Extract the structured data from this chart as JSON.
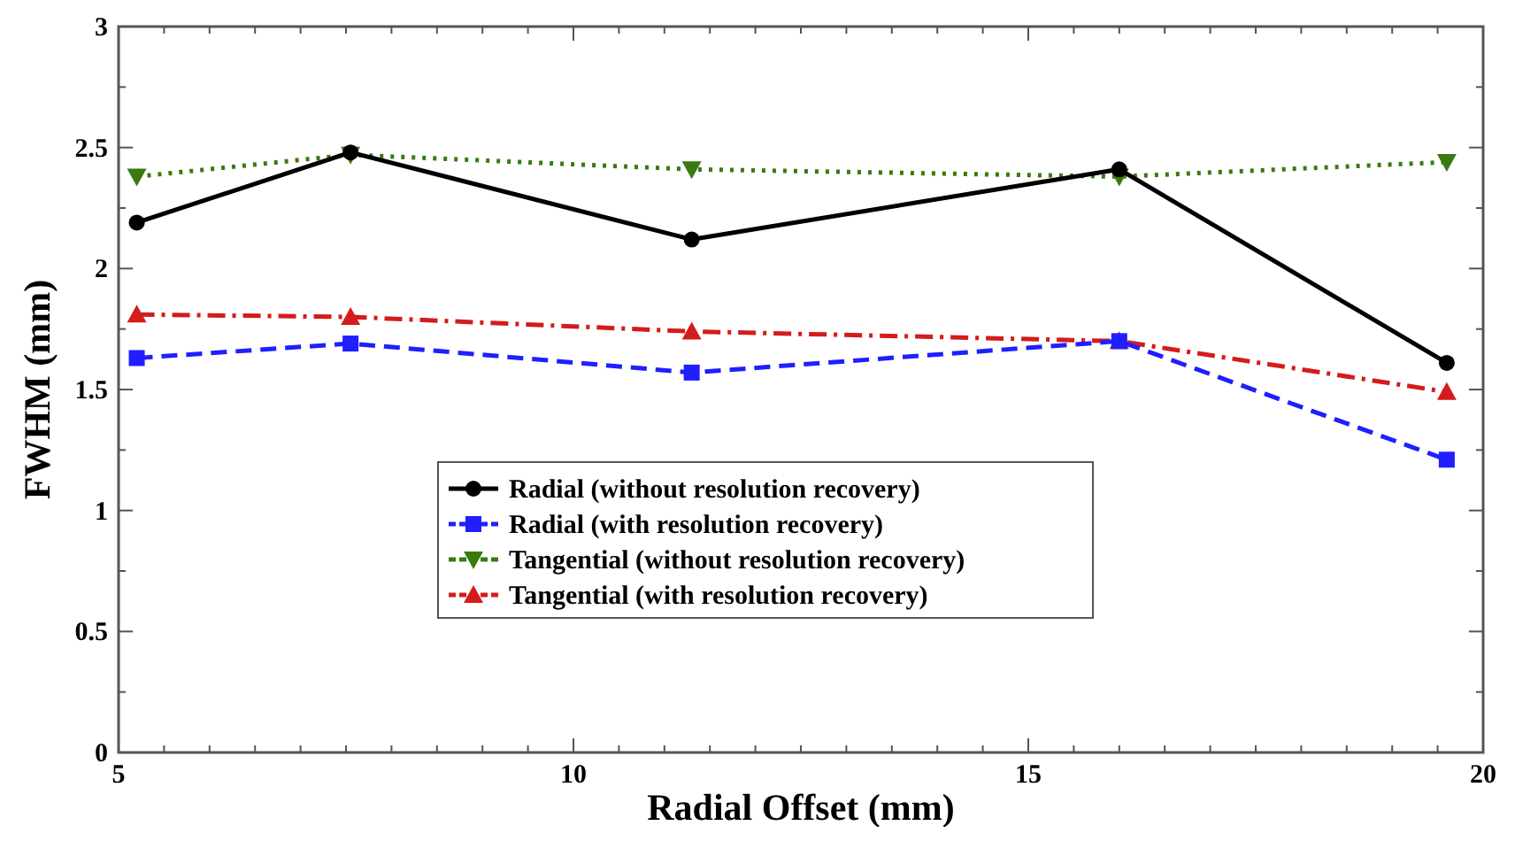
{
  "chart_data": {
    "type": "line",
    "xlabel": "Radial Offset (mm)",
    "ylabel": "FWHM (mm)",
    "xlim": [
      5,
      20
    ],
    "ylim": [
      0,
      3
    ],
    "xticks": [
      5,
      {
        "value": 5.5,
        "label": null
      },
      {
        "value": 6,
        "label": null
      },
      {
        "value": 6.5,
        "label": null
      },
      {
        "value": 7,
        "label": null
      },
      {
        "value": 7.5,
        "label": null
      },
      {
        "value": 8,
        "label": null
      },
      {
        "value": 8.5,
        "label": null
      },
      {
        "value": 9,
        "label": null
      },
      {
        "value": 9.5,
        "label": null
      },
      10,
      {
        "value": 10.5,
        "label": null
      },
      {
        "value": 11,
        "label": null
      },
      {
        "value": 11.5,
        "label": null
      },
      {
        "value": 12,
        "label": null
      },
      {
        "value": 12.5,
        "label": null
      },
      {
        "value": 13,
        "label": null
      },
      {
        "value": 13.5,
        "label": null
      },
      {
        "value": 14,
        "label": null
      },
      {
        "value": 14.5,
        "label": null
      },
      15,
      {
        "value": 15.5,
        "label": null
      },
      {
        "value": 16,
        "label": null
      },
      {
        "value": 16.5,
        "label": null
      },
      {
        "value": 17,
        "label": null
      },
      {
        "value": 17.5,
        "label": null
      },
      {
        "value": 18,
        "label": null
      },
      {
        "value": 18.5,
        "label": null
      },
      {
        "value": 19,
        "label": null
      },
      {
        "value": 19.5,
        "label": null
      },
      20
    ],
    "yticks": [
      0,
      {
        "value": 0.25,
        "label": null
      },
      0.5,
      {
        "value": 0.75,
        "label": null
      },
      1,
      {
        "value": 1.25,
        "label": null
      },
      1.5,
      {
        "value": 1.75,
        "label": null
      },
      2,
      {
        "value": 2.25,
        "label": null
      },
      2.5,
      {
        "value": 2.75,
        "label": null
      },
      3
    ],
    "x": [
      5.2,
      7.55,
      11.3,
      16,
      19.6
    ],
    "series": [
      {
        "name": "Radial (without resolution recovery)",
        "color": "#000000",
        "values": [
          2.19,
          2.48,
          2.12,
          2.41,
          1.61
        ],
        "marker": "circle",
        "line_style": "solid"
      },
      {
        "name": "Radial (with resolution recovery)",
        "color": "#1f1fff",
        "values": [
          1.63,
          1.69,
          1.57,
          1.7,
          1.21
        ],
        "marker": "square",
        "line_style": "dashed"
      },
      {
        "name": "Tangential (without resolution recovery)",
        "color": "#3a7a10",
        "values": [
          2.38,
          2.47,
          2.41,
          2.38,
          2.44
        ],
        "marker": "triangle-down",
        "line_style": "dotted"
      },
      {
        "name": "Tangential (with resolution recovery)",
        "color": "#d41c1c",
        "values": [
          1.81,
          1.8,
          1.74,
          1.7,
          1.49
        ],
        "marker": "triangle",
        "line_style": "dashdot"
      }
    ],
    "legend": "bottom",
    "grid": false
  }
}
